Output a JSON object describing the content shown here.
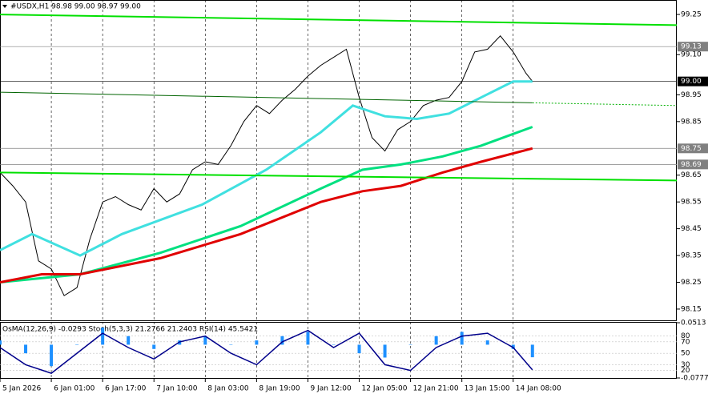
{
  "chart_data": [
    {
      "type": "line",
      "title": "#USDX,H1  98.98 99.00 98.97 99.00",
      "x": [
        0,
        4,
        8,
        12,
        16,
        20,
        24,
        28,
        32,
        36,
        40,
        44,
        48,
        52,
        56,
        60,
        64,
        68,
        72,
        76,
        80,
        84,
        88,
        92,
        96,
        100,
        104,
        108,
        112,
        116,
        120,
        124,
        128,
        132,
        136,
        140,
        144,
        148,
        152,
        156,
        160,
        164,
        166
      ],
      "xlim": [
        0,
        211
      ],
      "xticks": [
        {
          "value": 0,
          "label": "5 Jan 2026"
        },
        {
          "value": 16,
          "label": "6 Jan 01:00"
        },
        {
          "value": 32,
          "label": "6 Jan 17:00"
        },
        {
          "value": 48,
          "label": "7 Jan 10:00"
        },
        {
          "value": 64,
          "label": "8 Jan 03:00"
        },
        {
          "value": 80,
          "label": "8 Jan 19:00"
        },
        {
          "value": 96,
          "label": "9 Jan 12:00"
        },
        {
          "value": 112,
          "label": "12 Jan 05:00"
        },
        {
          "value": 128,
          "label": "12 Jan 21:00"
        },
        {
          "value": 144,
          "label": "13 Jan 15:00"
        },
        {
          "value": 160,
          "label": "14 Jan 08:00"
        }
      ],
      "ylim": [
        98.108,
        99.304
      ],
      "yticks": [
        99.25,
        {
          "value": 99.1,
          "label": "99.10"
        },
        98.95,
        98.85,
        98.65,
        98.55,
        98.45,
        98.35,
        98.25,
        98.15
      ],
      "grid": true,
      "series": [
        {
          "color": "#000000",
          "width": 1,
          "values": [
            98.66,
            98.61,
            98.55,
            98.33,
            98.3,
            98.2,
            98.23,
            98.41,
            98.55,
            98.57,
            98.54,
            98.52,
            98.6,
            98.55,
            98.58,
            98.67,
            98.7,
            98.69,
            98.76,
            98.85,
            98.91,
            98.88,
            98.93,
            98.97,
            99.02,
            99.06,
            99.09,
            99.12,
            98.94,
            98.79,
            98.74,
            98.82,
            98.85,
            98.91,
            98.93,
            98.94,
            99.0,
            99.11,
            99.12,
            99.17,
            99.11,
            99.03,
            99.0
          ]
        },
        {
          "color": "#40e0e0",
          "width": 3,
          "x": [
            0,
            10,
            25,
            38,
            63,
            83,
            100,
            110,
            120,
            130,
            140,
            150,
            160,
            166
          ],
          "values": [
            98.37,
            98.43,
            98.35,
            98.43,
            98.54,
            98.67,
            98.81,
            98.91,
            98.87,
            98.86,
            98.88,
            98.94,
            99.0,
            99.0
          ]
        },
        {
          "color": "#00e080",
          "width": 3,
          "x": [
            0,
            25,
            50,
            75,
            100,
            113,
            125,
            138,
            150,
            166
          ],
          "values": [
            98.25,
            98.28,
            98.36,
            98.46,
            98.6,
            98.67,
            98.69,
            98.72,
            98.76,
            98.83
          ]
        },
        {
          "color": "#e00000",
          "width": 3,
          "x": [
            0,
            13,
            25,
            50,
            75,
            100,
            113,
            125,
            138,
            150,
            166
          ],
          "values": [
            98.25,
            98.28,
            98.28,
            98.34,
            98.43,
            98.55,
            98.59,
            98.61,
            98.66,
            98.7,
            98.75
          ]
        },
        {
          "color": "#00e000",
          "width": 2,
          "x": [
            0,
            211
          ],
          "values": [
            99.25,
            99.21
          ]
        },
        {
          "color": "#00e000",
          "width": 2,
          "x": [
            0,
            211
          ],
          "values": [
            98.66,
            98.63
          ]
        },
        {
          "color": "#006400",
          "width": 1,
          "x": [
            0,
            166
          ],
          "values": [
            98.96,
            98.92
          ]
        },
        {
          "color": "#00b000",
          "width": 1,
          "dash": true,
          "x": [
            166,
            211
          ],
          "values": [
            98.92,
            98.91
          ]
        }
      ],
      "price_lines": [
        {
          "value": 99.13,
          "color": "#808080"
        },
        {
          "value": {
            "value": 99.0,
            "label": "99.00"
          },
          "color": "#000000"
        },
        {
          "value": 98.75,
          "color": "#808080"
        },
        {
          "value": 98.69,
          "color": "#808080"
        }
      ]
    },
    {
      "type": "oscillator",
      "title": "OsMA(12,26,9) -0.0293 Stoch(5,3,3) 21.2766 21.2403 RSI(14) 45.5421",
      "x": [
        0,
        8,
        16,
        24,
        32,
        40,
        48,
        56,
        64,
        72,
        80,
        88,
        96,
        104,
        112,
        120,
        128,
        136,
        144,
        152,
        160,
        166
      ],
      "xlim": [
        0,
        211
      ],
      "ylim": [
        6.8,
        103.4
      ],
      "yticks": [
        80,
        70,
        50,
        30,
        20
      ],
      "y2lim": [
        -0.0777,
        0.0513
      ],
      "y2ticks": [
        0.0513,
        -0.0777
      ],
      "series": [
        {
          "type": "bar",
          "axis": "y2",
          "color": "#1e90ff",
          "values": [
            0.01,
            -0.02,
            -0.05,
            0.0,
            0.04,
            0.02,
            -0.01,
            0.01,
            0.02,
            0.0,
            0.01,
            0.02,
            0.03,
            0.0,
            -0.02,
            -0.03,
            0.0,
            0.02,
            0.03,
            0.01,
            -0.01,
            -0.0293
          ]
        },
        {
          "type": "line",
          "color": "#00008b",
          "values": [
            60,
            30,
            15,
            50,
            85,
            60,
            40,
            70,
            80,
            50,
            30,
            70,
            90,
            60,
            85,
            30,
            20,
            60,
            80,
            85,
            60,
            21
          ]
        }
      ]
    }
  ]
}
